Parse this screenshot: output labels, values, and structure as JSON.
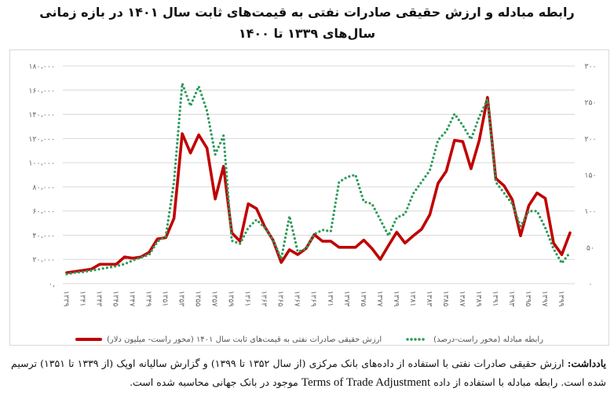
{
  "title": {
    "line1": "رابطه مبادله و ارزش حقیقی صادرات نفتی به قیمت‌های ثابت سال ۱۴۰۱ در بازه زمانی",
    "line2": "سال‌های ۱۳۳۹ تا ۱۴۰۰"
  },
  "legend": {
    "red": "ارزش حقیقی صادرات نفتی به قیمت‌های ثابت سال ۱۴۰۱ (محور راست- میلیون دلار)",
    "green": "رابطه مبادله (محور راست-درصد)"
  },
  "note": {
    "label": "یادداشت:",
    "part1": " ارزش حقیقی صادرات نفتی با استفاده از داده‌های بانک مرکزی (از سال ۱۳۵۲ تا ۱۳۹۹) و گزارش سالیانه اوپک (از ۱۳۳۹ تا ۱۳۵۱) ترسیم شده است. رابطه مبادله با استفاده از داده ",
    "english": "Terms of Trade Adjustment",
    "part2": " موجود در بانک جهانی محاسبه شده است."
  },
  "chart_data": {
    "type": "line",
    "title": "رابطه مبادله و ارزش حقیقی صادرات نفتی به قیمت‌های ثابت سال ۱۴۰۱ در بازه زمانی سال‌های ۱۳۳۹ تا ۱۴۰۰",
    "x": [
      1339,
      1340,
      1341,
      1342,
      1343,
      1344,
      1345,
      1346,
      1347,
      1348,
      1349,
      1350,
      1351,
      1352,
      1353,
      1354,
      1355,
      1356,
      1357,
      1358,
      1359,
      1360,
      1361,
      1362,
      1363,
      1364,
      1365,
      1366,
      1367,
      1368,
      1369,
      1370,
      1371,
      1372,
      1373,
      1374,
      1375,
      1376,
      1377,
      1378,
      1379,
      1380,
      1381,
      1382,
      1383,
      1384,
      1385,
      1386,
      1387,
      1388,
      1389,
      1390,
      1391,
      1392,
      1393,
      1394,
      1395,
      1396,
      1397,
      1398,
      1399,
      1400
    ],
    "x_tick_labels": [
      "۱۳۳۹",
      "۱۳۴۱",
      "۱۳۴۳",
      "۱۳۴۵",
      "۱۳۴۷",
      "۱۳۴۹",
      "۱۳۵۱",
      "۱۳۵۳",
      "۱۳۵۵",
      "۱۳۵۷",
      "۱۳۵۹",
      "۱۳۶۱",
      "۱۳۶۳",
      "۱۳۶۵",
      "۱۳۶۷",
      "۱۳۶۹",
      "۱۳۷۱",
      "۱۳۷۳",
      "۱۳۷۵",
      "۱۳۷۷",
      "۱۳۷۹",
      "۱۳۸۱",
      "۱۳۸۳",
      "۱۳۸۵",
      "۱۳۸۷",
      "۱۳۸۹",
      "۱۳۹۱",
      "۱۳۹۳",
      "۱۳۹۵",
      "۱۳۹۷",
      "۱۳۹۹"
    ],
    "y_left": {
      "range": [
        0,
        180000
      ],
      "tick_labels": [
        "۰,",
        "۲۰،۰۰۰",
        "۴۰،۰۰۰",
        "۶۰،۰۰۰",
        "۸۰،۰۰۰",
        "۱۰۰،۰۰۰",
        "۱۲۰،۰۰۰",
        "۱۴۰،۰۰۰",
        "۱۶۰،۰۰۰",
        "۱۸۰،۰۰۰"
      ]
    },
    "y_right": {
      "range": [
        0,
        300
      ],
      "tick_labels": [
        "۰",
        "۵۰",
        "۱۰۰",
        "۱۵۰",
        "۲۰۰",
        "۲۵۰",
        "۳۰۰"
      ]
    },
    "grid": true,
    "legend_position": "bottom",
    "series": [
      {
        "name": "ارزش حقیقی صادرات نفتی به قیمت‌های ثابت سال ۱۴۰۱ (محور راست- میلیون دلار)",
        "axis": "left",
        "color": "#c00000",
        "style": "solid",
        "values": [
          9000,
          10000,
          11000,
          12000,
          16000,
          16000,
          16000,
          22000,
          21000,
          22000,
          26000,
          37000,
          38000,
          54000,
          124000,
          108000,
          123000,
          112000,
          70000,
          97000,
          42000,
          35000,
          66000,
          62000,
          47000,
          36000,
          17500,
          28000,
          24000,
          29000,
          40500,
          35000,
          35000,
          30000,
          30000,
          30000,
          36000,
          29000,
          20000,
          31500,
          42500,
          33500,
          39500,
          45000,
          57000,
          83000,
          93000,
          118500,
          117500,
          95000,
          118500,
          154000,
          87000,
          81000,
          69500,
          39500,
          64500,
          75000,
          70500,
          33500,
          24000,
          42000
        ]
      },
      {
        "name": "رابطه مبادله (محور راست-درصد)",
        "axis": "right",
        "color": "#2e9a5a",
        "style": "dotted",
        "values": [
          13,
          15,
          16,
          18,
          20,
          22,
          24,
          27,
          32,
          36,
          40,
          58,
          65,
          140,
          276,
          245,
          272,
          238,
          178,
          204,
          59,
          55,
          77,
          88,
          77,
          61,
          34,
          93,
          44,
          48,
          68,
          74,
          72,
          140,
          147,
          150,
          113,
          110,
          88,
          66,
          91,
          96,
          124,
          140,
          156,
          198,
          210,
          234,
          218,
          199,
          230,
          254,
          140,
          125,
          110,
          79,
          100,
          100,
          77,
          48,
          28,
          43
        ]
      }
    ]
  }
}
